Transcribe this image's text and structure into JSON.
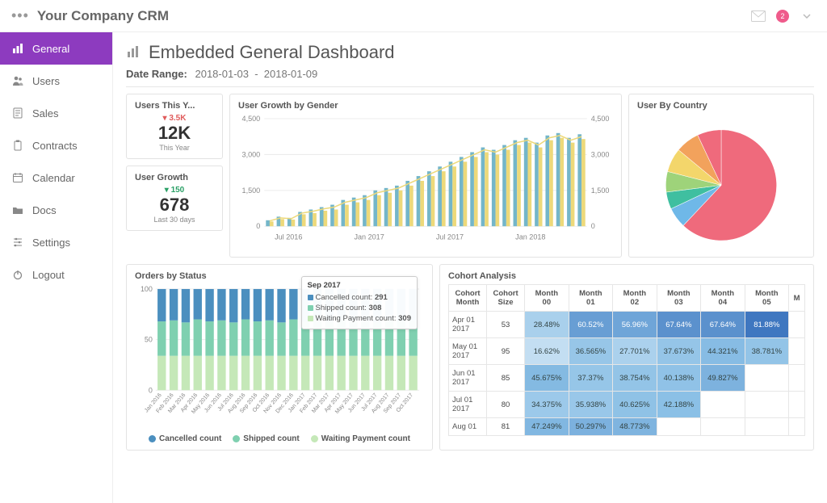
{
  "brand": "Your Company CRM",
  "topbar": {
    "notification_count": "2"
  },
  "sidebar": {
    "items": [
      {
        "label": "General",
        "icon": "chart-icon",
        "active": true
      },
      {
        "label": "Users",
        "icon": "users-icon"
      },
      {
        "label": "Sales",
        "icon": "doc-icon"
      },
      {
        "label": "Contracts",
        "icon": "clipboard-icon"
      },
      {
        "label": "Calendar",
        "icon": "calendar-icon"
      },
      {
        "label": "Docs",
        "icon": "folder-icon"
      },
      {
        "label": "Settings",
        "icon": "sliders-icon"
      },
      {
        "label": "Logout",
        "icon": "power-icon"
      }
    ]
  },
  "page": {
    "title": "Embedded General Dashboard",
    "date_label": "Date Range:",
    "date_from": "2018-01-03",
    "date_to": "2018-01-09"
  },
  "kpi_users": {
    "title": "Users This Y...",
    "delta": "3.5K",
    "delta_dir": "down",
    "delta_color": "#e05b5b",
    "value": "12K",
    "sub": "This Year"
  },
  "kpi_growth": {
    "title": "User Growth",
    "delta": "150",
    "delta_dir": "down",
    "delta_color": "#2aa066",
    "value": "678",
    "sub": "Last 30 days"
  },
  "growth_chart": {
    "title": "User Growth by Gender",
    "type": "bar+line",
    "ylim": [
      0,
      4500
    ],
    "yticks": [
      0,
      1500,
      3000,
      4500
    ],
    "x_tick_labels": [
      "Jul 2016",
      "Jan 2017",
      "Jul 2017",
      "Jan 2018"
    ],
    "series_a_color": "#74b6c9",
    "series_b_color": "#edd97a",
    "line_color": "#edd97a",
    "grid_color": "#ececec",
    "values_a": [
      250,
      400,
      350,
      600,
      700,
      800,
      900,
      1100,
      1200,
      1300,
      1500,
      1600,
      1700,
      1900,
      2100,
      2300,
      2500,
      2700,
      2900,
      3100,
      3300,
      3200,
      3400,
      3600,
      3700,
      3500,
      3800,
      3900,
      3700,
      3850
    ],
    "values_b": [
      200,
      300,
      280,
      500,
      550,
      650,
      700,
      900,
      1000,
      1100,
      1300,
      1400,
      1500,
      1700,
      1900,
      2100,
      2300,
      2500,
      2700,
      2900,
      3100,
      3000,
      3200,
      3400,
      3500,
      3300,
      3600,
      3700,
      3500,
      3650
    ]
  },
  "pie_chart": {
    "title": "User By Country",
    "slices": [
      {
        "value": 62,
        "color": "#ef6a7c"
      },
      {
        "value": 6,
        "color": "#6fb8e8"
      },
      {
        "value": 5,
        "color": "#3fbfa0"
      },
      {
        "value": 6,
        "color": "#9ed37a"
      },
      {
        "value": 7,
        "color": "#f3d66b"
      },
      {
        "value": 7,
        "color": "#f2a25c"
      },
      {
        "value": 7,
        "color": "#ef6a7c"
      }
    ]
  },
  "orders_chart": {
    "title": "Orders by Status",
    "type": "stacked-bar-100",
    "ylim": [
      0,
      100
    ],
    "yticks": [
      0,
      50,
      100
    ],
    "colors": {
      "cancelled": "#4b8fbf",
      "shipped": "#7fd0b0",
      "waiting": "#c5e8b8"
    },
    "grid_color": "#ececec",
    "x_labels": [
      "Jan 2016",
      "Feb 2016",
      "Mar 2016",
      "Apr 2016",
      "May 2016",
      "Jun 2016",
      "Jul 2016",
      "Aug 2016",
      "Sep 2016",
      "Oct 2016",
      "Nov 2016",
      "Dec 2016",
      "Jan 2017",
      "Feb 2017",
      "Mar 2017",
      "Apr 2017",
      "May 2017",
      "Jun 2017",
      "Jul 2017",
      "Aug 2017",
      "Sep 2017",
      "Oct 2017"
    ],
    "stacks": [
      [
        32,
        34,
        34
      ],
      [
        31,
        35,
        34
      ],
      [
        33,
        33,
        34
      ],
      [
        30,
        36,
        34
      ],
      [
        32,
        34,
        34
      ],
      [
        31,
        35,
        34
      ],
      [
        33,
        33,
        34
      ],
      [
        30,
        36,
        34
      ],
      [
        32,
        34,
        34
      ],
      [
        31,
        35,
        34
      ],
      [
        33,
        33,
        34
      ],
      [
        30,
        36,
        34
      ],
      [
        32,
        34,
        34
      ],
      [
        31,
        35,
        34
      ],
      [
        33,
        33,
        34
      ],
      [
        30,
        36,
        34
      ],
      [
        32,
        34,
        34
      ],
      [
        31,
        35,
        34
      ],
      [
        33,
        33,
        34
      ],
      [
        30,
        36,
        34
      ],
      [
        32,
        34,
        34
      ],
      [
        31,
        35,
        34
      ]
    ],
    "legend": [
      "Cancelled count",
      "Shipped count",
      "Waiting Payment count"
    ],
    "tooltip": {
      "title": "Sep 2017",
      "rows": [
        {
          "label": "Cancelled count:",
          "value": "291",
          "color": "#4b8fbf"
        },
        {
          "label": "Shipped count:",
          "value": "308",
          "color": "#7fd0b0"
        },
        {
          "label": "Waiting Payment count:",
          "value": "309",
          "color": "#c5e8b8"
        }
      ]
    }
  },
  "cohort": {
    "title": "Cohort Analysis",
    "columns": [
      "Cohort Month",
      "Cohort Size",
      "Month 00",
      "Month 01",
      "Month 02",
      "Month 03",
      "Month 04",
      "Month 05",
      "M"
    ],
    "rows": [
      {
        "label": "Apr 01 2017",
        "size": 53,
        "cells": [
          "28.48%",
          "60.52%",
          "56.96%",
          "67.64%",
          "67.64%",
          "81.88%"
        ]
      },
      {
        "label": "May 01 2017",
        "size": 95,
        "cells": [
          "16.62%",
          "36.565%",
          "27.701%",
          "37.673%",
          "44.321%",
          "38.781%"
        ]
      },
      {
        "label": "Jun 01 2017",
        "size": 85,
        "cells": [
          "45.675%",
          "37.37%",
          "38.754%",
          "40.138%",
          "49.827%"
        ]
      },
      {
        "label": "Jul 01 2017",
        "size": 80,
        "cells": [
          "34.375%",
          "35.938%",
          "40.625%",
          "42.188%"
        ]
      },
      {
        "label": "Aug 01",
        "size": 81,
        "cells": [
          "47.249%",
          "50.297%",
          "48.773%"
        ]
      }
    ],
    "heat_min_color": "#e7f2fb",
    "heat_mid_color": "#8bc0e6",
    "heat_max_color": "#3a72bd"
  }
}
